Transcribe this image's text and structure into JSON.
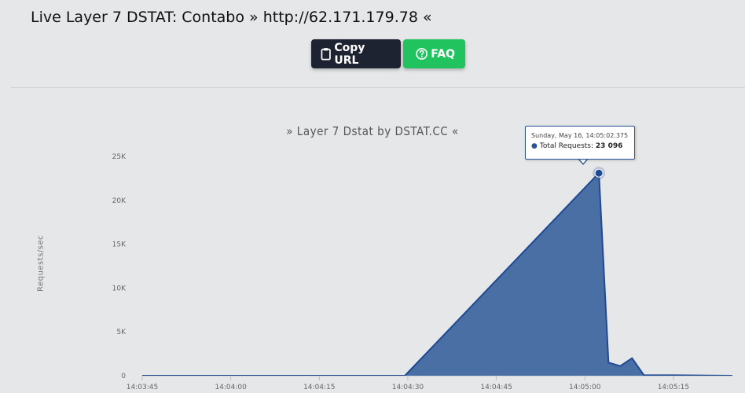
{
  "header": {
    "title": "Live Layer 7 DSTAT: Contabo » http://62.171.179.78 «"
  },
  "buttons": {
    "copy_label": "Copy URL",
    "faq_label": "FAQ"
  },
  "colors": {
    "copy_button": "#1d2331",
    "faq_button": "#20c35e",
    "series_fill": "#4a6fa5",
    "series_line": "#1f4a92"
  },
  "icons": {
    "copy": "clipboard-icon",
    "faq": "question-circle-icon"
  },
  "chart_data": {
    "type": "area",
    "title": "» Layer 7 Dstat by DSTAT.CC «",
    "ylabel": "Requests/sec",
    "xlabel": "",
    "ylim": [
      0,
      25000
    ],
    "yticks": [
      0,
      5000,
      10000,
      15000,
      20000,
      25000
    ],
    "ytick_labels": [
      "0",
      "5K",
      "10K",
      "15K",
      "20K",
      "25K"
    ],
    "xlim": [
      "14:03:45",
      "14:05:25"
    ],
    "xticks": [
      "14:03:45",
      "14:04:00",
      "14:04:15",
      "14:04:30",
      "14:04:45",
      "14:05:00",
      "14:05:15"
    ],
    "grid": false,
    "legend": "none",
    "series": [
      {
        "x": [
          "14:03:45",
          "14:04:00",
          "14:04:15",
          "14:04:29.5",
          "14:05:02.375",
          "14:05:04",
          "14:05:06",
          "14:05:08",
          "14:05:10",
          "14:05:15",
          "14:05:25"
        ],
        "values": [
          0,
          0,
          0,
          0,
          23096,
          1500,
          1100,
          2000,
          50,
          50,
          0
        ]
      }
    ],
    "tooltip": {
      "date": "Sunday, May 16, 14:05:02.375",
      "label": "Total Requests",
      "value": "23 096"
    }
  }
}
